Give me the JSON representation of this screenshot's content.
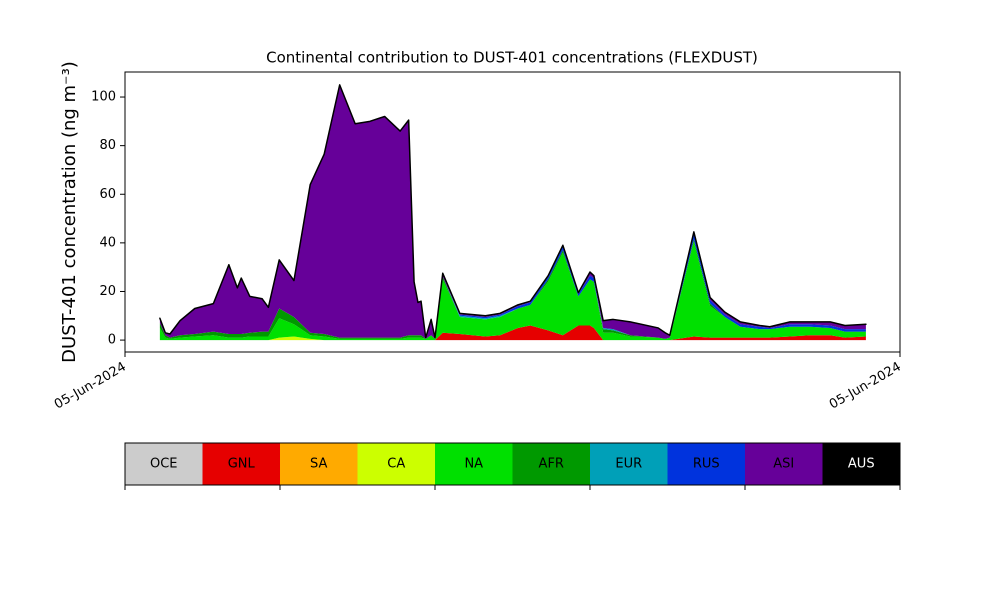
{
  "chart_data": {
    "type": "area",
    "title": "Continental contribution to DUST-401 concentrations (FLEXDUST)",
    "ylabel": "DUST-401 concentration (ng m⁻³)",
    "stacked": true,
    "x": [
      4.5,
      5.2,
      5.8,
      7.1,
      9.0,
      11.4,
      13.4,
      14.5,
      15.0,
      16.1,
      17.7,
      18.5,
      19.9,
      21.8,
      23.9,
      25.7,
      27.7,
      29.7,
      31.6,
      33.5,
      35.5,
      36.6,
      37.3,
      37.8,
      38.2,
      38.8,
      39.5,
      40.0,
      41.0,
      43.2,
      46.5,
      48.4,
      50.7,
      52.3,
      54.6,
      56.5,
      58.5,
      60.0,
      60.5,
      61.7,
      63.0,
      65.2,
      68.8,
      69.7,
      70.3,
      73.4,
      75.5,
      77.4,
      79.4,
      81.9,
      83.2,
      85.8,
      88.4,
      91.0,
      92.9,
      95.6
    ],
    "xlim": [
      0,
      100
    ],
    "xticks": [
      {
        "value": 0,
        "label": "05-Jun-2024"
      },
      {
        "value": 100,
        "label": "05-Jun-2024"
      }
    ],
    "ylim": [
      -4.9,
      110.3
    ],
    "yticks": [
      0,
      20,
      40,
      60,
      80,
      100
    ],
    "series": [
      {
        "name": "OCE",
        "color": "#cccccc",
        "values": [
          0,
          0,
          0,
          0,
          0,
          0,
          0,
          0,
          0,
          0,
          0,
          0,
          0,
          0,
          0,
          0,
          0,
          0,
          0,
          0,
          0,
          0,
          0,
          0,
          0,
          0,
          0,
          0,
          0,
          0,
          0,
          0,
          0,
          0,
          0,
          0,
          0,
          0,
          0,
          0,
          0,
          0,
          0,
          0,
          0,
          0,
          0,
          0,
          0,
          0,
          0,
          0,
          0,
          0,
          0,
          0
        ]
      },
      {
        "name": "GNL",
        "color": "#e60000",
        "values": [
          0,
          0,
          0,
          0,
          0,
          0,
          0,
          0,
          0,
          0,
          0,
          0,
          0,
          0,
          0,
          0,
          0,
          0,
          0,
          0,
          0,
          0,
          0,
          0,
          0,
          0,
          0,
          0,
          3,
          2.5,
          1.5,
          2,
          5,
          6,
          4,
          2,
          6,
          6,
          5,
          0,
          0,
          0,
          0,
          0,
          0,
          1.5,
          1,
          1,
          1,
          1,
          1,
          1.5,
          2,
          2,
          1,
          1.5
        ]
      },
      {
        "name": "SA",
        "color": "#ffaa00",
        "values": [
          0,
          0,
          0,
          0,
          0,
          0,
          0,
          0,
          0,
          0,
          0,
          0,
          0,
          0,
          0,
          0,
          0,
          0,
          0,
          0,
          0,
          0,
          0,
          0,
          0,
          0,
          0,
          0,
          0,
          0,
          0,
          0,
          0,
          0,
          0,
          0,
          0,
          0,
          0,
          0,
          0,
          0,
          0,
          0,
          0,
          0,
          0,
          0,
          0,
          0,
          0,
          0,
          0,
          0,
          0,
          0
        ]
      },
      {
        "name": "CA",
        "color": "#ccff00",
        "values": [
          0,
          0,
          0,
          0,
          0,
          0,
          0,
          0,
          0,
          0,
          0,
          0,
          1,
          1.5,
          0.5,
          0,
          0,
          0,
          0,
          0,
          0,
          0,
          0,
          0,
          0,
          0,
          0,
          0,
          0,
          0,
          0,
          0,
          0,
          0,
          0,
          0,
          0,
          0,
          0,
          0,
          0,
          0,
          0,
          0,
          0,
          0,
          0,
          0,
          0,
          0,
          0,
          0,
          0,
          0,
          0,
          0
        ]
      },
      {
        "name": "NA",
        "color": "#00e000",
        "values": [
          5,
          1,
          0.5,
          1,
          1.5,
          2,
          1,
          1,
          1,
          1.5,
          1.5,
          1.5,
          8,
          5,
          1.5,
          1.5,
          0.5,
          0.5,
          0.5,
          0.5,
          0.5,
          1,
          1,
          1,
          1,
          0.5,
          2,
          0.5,
          22,
          7,
          7,
          7.5,
          8,
          8.5,
          20,
          34,
          12,
          19,
          19,
          3,
          3,
          1.5,
          1,
          0.5,
          1,
          39,
          13,
          8.5,
          4.5,
          3.5,
          3.5,
          4,
          3.5,
          3,
          2.5,
          2
        ]
      },
      {
        "name": "AFR",
        "color": "#009900",
        "values": [
          2,
          1,
          0.5,
          1,
          1,
          1.5,
          1.5,
          1.5,
          1.5,
          1.5,
          2,
          2,
          4,
          3,
          1,
          1,
          0.5,
          0.5,
          0.5,
          0.5,
          0.5,
          1,
          1,
          1,
          1,
          0,
          0,
          0,
          1,
          0,
          0,
          0,
          0,
          0,
          1,
          1,
          0,
          0,
          0,
          1.5,
          1,
          0.5,
          0,
          0,
          0,
          1,
          1,
          0,
          0,
          0,
          0,
          0,
          0,
          0,
          0,
          0
        ]
      },
      {
        "name": "EUR",
        "color": "#00a0b8",
        "values": [
          0,
          0,
          0,
          0,
          0,
          0,
          0,
          0,
          0,
          0,
          0,
          0,
          0,
          0,
          0,
          0,
          0,
          0,
          0,
          0,
          0,
          0,
          0,
          0,
          0,
          0,
          0,
          0,
          0,
          0.5,
          0.5,
          0.5,
          0,
          0,
          0,
          0,
          0,
          0,
          0,
          0.5,
          0.5,
          0,
          0,
          0,
          0,
          0,
          0,
          0,
          0,
          0,
          0,
          0,
          0,
          0,
          0,
          0
        ]
      },
      {
        "name": "RUS",
        "color": "#0033dd",
        "values": [
          0,
          0,
          0,
          0,
          0,
          0,
          0,
          0,
          0,
          0,
          0,
          0,
          0,
          0,
          0,
          0,
          0,
          0,
          0,
          0,
          0,
          0,
          0,
          0,
          0,
          0,
          0,
          0,
          0,
          0.5,
          0.5,
          0.5,
          1,
          1,
          1,
          1.5,
          1,
          1.5,
          1.5,
          0,
          0,
          0,
          0,
          0,
          0,
          2.5,
          1.5,
          1,
          1,
          1,
          0.5,
          1,
          1,
          1,
          1,
          1
        ]
      },
      {
        "name": "ASI",
        "color": "#660099",
        "values": [
          2,
          1,
          1.5,
          6,
          10.5,
          11.5,
          28.5,
          19,
          23,
          15,
          13.5,
          10,
          20,
          15,
          61,
          74,
          104,
          88,
          89,
          91,
          85,
          88.5,
          22,
          13.5,
          14,
          0.5,
          6.5,
          0.5,
          1.5,
          0.5,
          0.5,
          0.5,
          0.5,
          0.5,
          0.5,
          0.5,
          0.5,
          1.5,
          1,
          3,
          4,
          5.5,
          4,
          2.5,
          1,
          0.5,
          1,
          1,
          1,
          0.5,
          0.5,
          1,
          1,
          1.5,
          1.5,
          2
        ]
      },
      {
        "name": "AUS",
        "color": "#000000",
        "values": [
          0,
          0,
          0,
          0,
          0,
          0,
          0,
          0,
          0,
          0,
          0,
          0,
          0,
          0,
          0,
          0,
          0,
          0,
          0,
          0,
          0,
          0,
          0,
          0,
          0,
          0,
          0,
          0,
          0,
          0,
          0,
          0,
          0,
          0,
          0,
          0,
          0,
          0,
          0,
          0,
          0,
          0,
          0,
          0,
          0,
          0,
          0,
          0,
          0,
          0,
          0,
          0,
          0,
          0,
          0,
          0
        ]
      }
    ]
  }
}
